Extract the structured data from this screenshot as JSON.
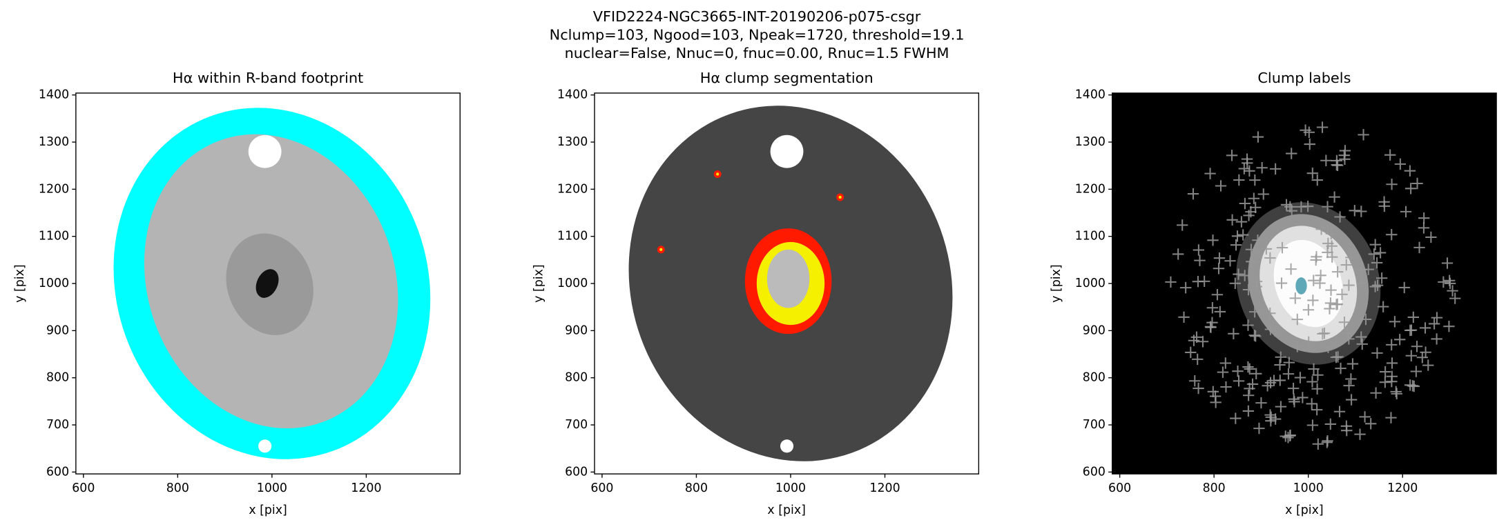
{
  "suptitle": {
    "lines": [
      "VFID2224-NGC3665-INT-20190206-p075-csgr",
      "Nclump=103, Ngood=103, Npeak=1720, threshold=19.1",
      "nuclear=False, Nnuc=0, fnuc=0.00, Rnuc=1.5 FWHM"
    ]
  },
  "chart_data": [
    {
      "type": "image",
      "title": "Hα within R-band footprint",
      "x_label": "x [pix]",
      "y_label": "y [pix]",
      "xlim": [
        584,
        1399
      ],
      "ylim": [
        596,
        1404
      ],
      "xticks": [
        600,
        800,
        1000,
        1200
      ],
      "yticks": [
        600,
        700,
        800,
        900,
        1000,
        1100,
        1200,
        1300,
        1400
      ]
    },
    {
      "type": "image",
      "title": "Hα clump segmentation",
      "x_label": "x [pix]",
      "y_label": "y [pix]",
      "xlim": [
        584,
        1399
      ],
      "ylim": [
        596,
        1404
      ],
      "xticks": [
        600,
        800,
        1000,
        1200
      ],
      "yticks": [
        600,
        700,
        800,
        900,
        1000,
        1100,
        1200,
        1300,
        1400
      ]
    },
    {
      "type": "image",
      "title": "Clump labels",
      "x_label": "x [pix]",
      "y_label": "y [pix]",
      "xlim": [
        584,
        1399
      ],
      "ylim": [
        596,
        1404
      ],
      "xticks": [
        600,
        800,
        1000,
        1200
      ],
      "yticks": [
        600,
        700,
        800,
        900,
        1000,
        1100,
        1200,
        1300,
        1400
      ]
    }
  ]
}
